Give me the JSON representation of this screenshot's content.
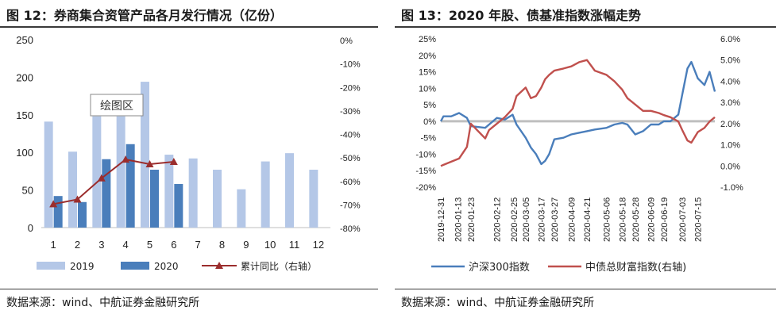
{
  "left_panel": {
    "title": "图 12：券商集合资管产品各月发行情况（亿份）",
    "source": "数据来源：wind、中航证券金融研究所",
    "callout": "绘图区",
    "colors": {
      "series2019": "#b4c7e7",
      "series2020": "#4a7ebb",
      "yoy": "#9b2d2d"
    }
  },
  "right_panel": {
    "title": "图 13：2020 年股、债基准指数涨幅走势",
    "source": "数据来源：wind、中航证券金融研究所",
    "colors": {
      "csi300": "#4a7ebb",
      "bond": "#c0504d",
      "zero_line": "#bfbfbf"
    }
  },
  "chart_data": [
    {
      "type": "bar",
      "title": "图 12：券商集合资管产品各月发行情况（亿份）",
      "categories": [
        "1",
        "2",
        "3",
        "4",
        "5",
        "6",
        "7",
        "8",
        "9",
        "10",
        "11",
        "12"
      ],
      "series": [
        {
          "name": "2019",
          "values": [
            141,
            101,
            148,
            148,
            194,
            97,
            92,
            77,
            51,
            88,
            99,
            77
          ]
        },
        {
          "name": "2020",
          "values": [
            42,
            34,
            91,
            111,
            77,
            58,
            null,
            null,
            null,
            null,
            null,
            null
          ]
        },
        {
          "name": "累计同比（右轴）",
          "type": "line",
          "axis": "right",
          "values": [
            -70,
            -68,
            -59,
            -51,
            -53,
            -52,
            null,
            null,
            null,
            null,
            null,
            null
          ]
        }
      ],
      "y_left": {
        "range": [
          0,
          250
        ],
        "ticks": [
          "0",
          "50",
          "100",
          "150",
          "200",
          "250"
        ]
      },
      "y_right": {
        "range": [
          -80,
          0
        ],
        "ticks": [
          "0%",
          "-10%",
          "-20%",
          "-30%",
          "-40%",
          "-50%",
          "-60%",
          "-70%",
          "-80%"
        ]
      },
      "legend": [
        "2019",
        "2020",
        "累计同比（右轴）"
      ],
      "legend_position": "bottom"
    },
    {
      "type": "line",
      "title": "图 13：2020 年股、债基准指数涨幅走势",
      "x": [
        "2019-12-31",
        "2020-01-02",
        "2020-01-08",
        "2020-01-14",
        "2020-01-20",
        "2020-01-23",
        "2020-02-03",
        "2020-02-06",
        "2020-02-12",
        "2020-02-18",
        "2020-02-24",
        "2020-02-27",
        "2020-03-05",
        "2020-03-09",
        "2020-03-13",
        "2020-03-17",
        "2020-03-20",
        "2020-03-23",
        "2020-03-27",
        "2020-04-03",
        "2020-04-09",
        "2020-04-15",
        "2020-04-21",
        "2020-04-27",
        "2020-05-06",
        "2020-05-12",
        "2020-05-18",
        "2020-05-22",
        "2020-05-28",
        "2020-06-03",
        "2020-06-09",
        "2020-06-15",
        "2020-06-19",
        "2020-06-24",
        "2020-06-30",
        "2020-07-03",
        "2020-07-07",
        "2020-07-10",
        "2020-07-15",
        "2020-07-20",
        "2020-07-24",
        "2020-07-28"
      ],
      "series": [
        {
          "name": "沪深300指数",
          "axis": "left",
          "values": [
            0,
            1.5,
            1.5,
            2.5,
            1,
            -1.5,
            -2,
            -1,
            1,
            0.5,
            2,
            -1,
            -5,
            -8,
            -10,
            -13,
            -12,
            -10,
            -5.5,
            -5,
            -4,
            -3.5,
            -3,
            -2.5,
            -2,
            -1,
            -0.5,
            -1,
            -4,
            -3,
            -1,
            -1,
            0,
            0,
            2,
            8,
            16,
            18,
            13,
            11,
            15,
            9
          ]
        },
        {
          "name": "中债总财富指数(右轴)",
          "axis": "right",
          "values": [
            0,
            0.05,
            0.2,
            0.35,
            0.9,
            2.0,
            1.3,
            1.7,
            2.0,
            2.3,
            2.7,
            3.3,
            3.7,
            3.2,
            3.3,
            3.7,
            4.1,
            4.3,
            4.5,
            4.6,
            4.7,
            4.9,
            5.0,
            4.5,
            4.3,
            4.0,
            3.6,
            3.2,
            2.9,
            2.6,
            2.6,
            2.5,
            2.4,
            2.3,
            2.1,
            1.7,
            1.2,
            1.1,
            1.6,
            1.8,
            2.1,
            2.3
          ]
        }
      ],
      "x_ticks": [
        "2019-12-31",
        "2020-01-13",
        "2020-01-23",
        "2020-02-12",
        "2020-02-25",
        "2020-03-05",
        "2020-03-17",
        "2020-03-27",
        "2020-04-09",
        "2020-04-21",
        "2020-05-06",
        "2020-05-18",
        "2020-05-28",
        "2020-06-09",
        "2020-06-19",
        "2020-07-03",
        "2020-07-15"
      ],
      "y_left": {
        "range": [
          -20,
          25
        ],
        "ticks": [
          "25%",
          "20%",
          "15%",
          "10%",
          "5%",
          "0%",
          "-5%",
          "-10%",
          "-15%",
          "-20%"
        ]
      },
      "y_right": {
        "range": [
          -1,
          6
        ],
        "ticks": [
          "6.0%",
          "5.0%",
          "4.0%",
          "3.0%",
          "2.0%",
          "1.0%",
          "0.0%",
          "-1.0%"
        ]
      },
      "legend": [
        "沪深300指数",
        "中债总财富指数(右轴)"
      ],
      "legend_position": "bottom"
    }
  ]
}
